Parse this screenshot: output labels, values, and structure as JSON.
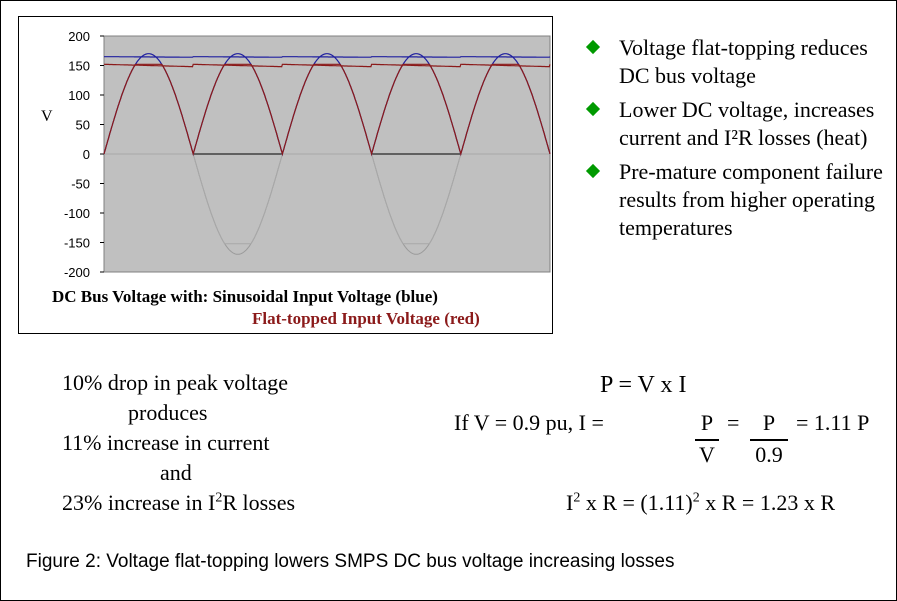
{
  "chart_data": {
    "type": "line",
    "ylabel": "V",
    "ylim": [
      -200,
      200
    ],
    "yticks": [
      200,
      150,
      100,
      50,
      0,
      -50,
      -100,
      -150,
      -200
    ],
    "grid": false,
    "background": "#c0c0c0",
    "caption_line1_prefix": "DC Bus Voltage with:",
    "caption_line1_series": "Sinusoidal Input Voltage (blue)",
    "caption_line2_series": "Flat-topped Input Voltage (red)",
    "series": [
      {
        "name": "Sinusoidal Input Voltage",
        "color": "#1f1f9f",
        "peak": 170,
        "dc_level": 165
      },
      {
        "name": "Flat-topped Input Voltage",
        "color": "#8b1a1a",
        "flat_top": 152,
        "dc_level": 148
      }
    ],
    "x_range_cycles": 2.5
  },
  "bullets": [
    "Voltage flat-topping reduces DC bus voltage",
    "Lower DC voltage, increases current and I²R losses (heat)",
    "Pre-mature component failure results from higher operating temperatures"
  ],
  "left_text": {
    "line1": "10% drop in peak voltage",
    "line2": "produces",
    "line3": "11% increase in current",
    "line4": "and",
    "line5_prefix": "23% increase in I",
    "line5_sup": "2",
    "line5_suffix": "R losses"
  },
  "formulas": {
    "pvi": "P = V x I",
    "if_part": "If   V = 0.9 pu,   I =",
    "frac1_num": "P",
    "frac1_den": "V",
    "eq": "=",
    "frac2_num": "P",
    "frac2_den": "0.9",
    "result": "= 1.11 P",
    "loss_eq_I": "I",
    "loss_eq_sup1": "2",
    "loss_eq_mid": " x R = (1.11)",
    "loss_eq_sup2": "2",
    "loss_eq_end": " x R = 1.23 x R"
  },
  "figure_caption": "Figure 2:  Voltage flat-topping lowers SMPS DC bus voltage increasing losses"
}
